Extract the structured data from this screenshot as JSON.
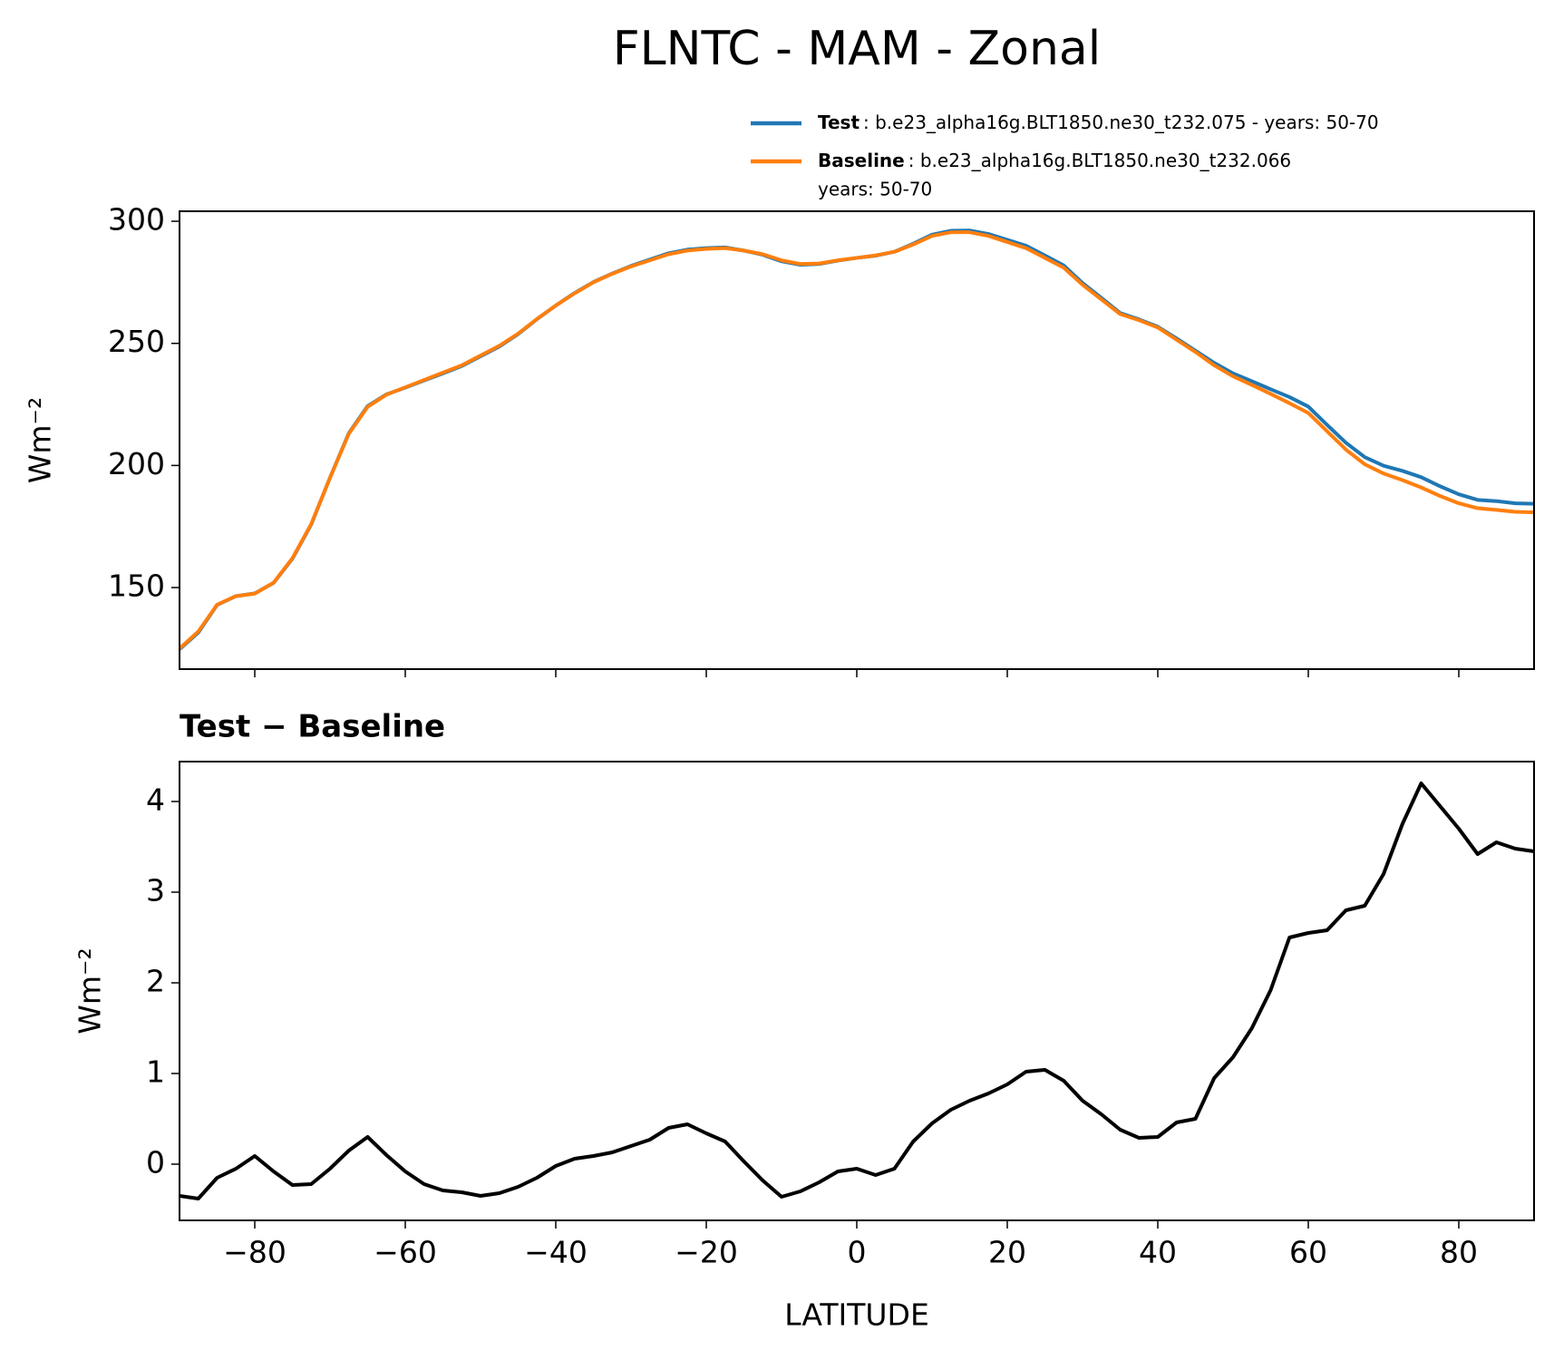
{
  "title": "FLNTC - MAM - Zonal",
  "chart_data": [
    {
      "type": "line",
      "ylabel": "Wm⁻²",
      "xlim": [
        -90,
        90
      ],
      "ylim": [
        116.6,
        304.1
      ],
      "xticks": [
        {
          "value": -80,
          "label": "−80"
        },
        {
          "value": -60,
          "label": "−60"
        },
        {
          "value": -40,
          "label": "−40"
        },
        {
          "value": -20,
          "label": "−20"
        },
        0,
        20,
        40,
        60,
        80
      ],
      "yticks": [
        150,
        200,
        250,
        300
      ],
      "x": [
        -90,
        -87.5,
        -85,
        -82.5,
        -80,
        -77.5,
        -75,
        -72.5,
        -70,
        -67.5,
        -65,
        -62.5,
        -60,
        -57.5,
        -55,
        -52.5,
        -50,
        -47.5,
        -45,
        -42.5,
        -40,
        -37.5,
        -35,
        -32.5,
        -30,
        -27.5,
        -25,
        -22.5,
        -20,
        -17.5,
        -15,
        -12.5,
        -10,
        -7.5,
        -5,
        -2.5,
        0,
        2.5,
        5,
        7.5,
        10,
        12.5,
        15,
        17.5,
        20,
        22.5,
        25,
        27.5,
        30,
        32.5,
        35,
        37.5,
        40,
        42.5,
        45,
        47.5,
        50,
        52.5,
        55,
        57.5,
        60,
        62.5,
        65,
        67.5,
        70,
        72.5,
        75,
        77.5,
        80,
        82.5,
        85,
        87.5,
        90
      ],
      "series": [
        {
          "name": "Test",
          "description": [
            ": b.e23_alpha16g.BLT1850.ne30_t232.075 - years: 50-70"
          ],
          "color": "#1f77b4",
          "values": [
            124.7,
            131.6,
            142.9,
            146.5,
            147.6,
            151.9,
            161.8,
            175.8,
            195.0,
            213.2,
            224.3,
            229.1,
            231.9,
            234.8,
            237.7,
            240.7,
            244.7,
            248.7,
            253.8,
            259.9,
            265.5,
            270.6,
            275.1,
            278.6,
            281.7,
            284.3,
            286.9,
            288.4,
            289.0,
            289.3,
            288.0,
            286.3,
            283.6,
            282.2,
            282.5,
            283.9,
            285.0,
            285.9,
            287.5,
            290.8,
            294.5,
            296.1,
            296.2,
            294.8,
            292.4,
            290.0,
            286.0,
            281.9,
            274.7,
            268.6,
            262.4,
            259.8,
            256.8,
            252.0,
            247.0,
            242.0,
            237.7,
            234.5,
            231.2,
            228.0,
            224.1,
            216.6,
            209.3,
            203.4,
            199.9,
            197.8,
            195.2,
            191.5,
            188.2,
            185.9,
            185.4,
            184.5,
            184.3
          ]
        },
        {
          "name": "Baseline",
          "description": [
            ": b.e23_alpha16g.BLT1850.ne30_t232.066",
            "years: 50-70"
          ],
          "color": "#ff7f0e",
          "values": [
            125,
            132,
            143,
            146.5,
            147.5,
            152,
            162,
            176,
            195,
            213,
            224,
            229,
            232,
            235,
            238,
            241,
            245,
            249,
            254,
            260,
            265.5,
            270.5,
            275,
            278.5,
            281.5,
            284,
            286.5,
            288,
            288.7,
            289,
            288,
            286.5,
            284,
            282.5,
            282.7,
            284,
            285,
            286,
            287.5,
            290.5,
            294,
            295.5,
            295.5,
            294,
            291.5,
            289,
            285,
            281,
            274,
            268,
            262,
            259.5,
            256.5,
            251.5,
            246.5,
            241,
            236.5,
            233,
            229.3,
            225.5,
            221.5,
            214,
            206.5,
            200.5,
            196.7,
            194,
            191,
            187.5,
            184.5,
            182.5,
            181.8,
            181,
            180.8
          ]
        }
      ]
    },
    {
      "type": "line",
      "title": "Test − Baseline",
      "xlabel": "LATITUDE",
      "ylabel": "Wm⁻²",
      "xlim": [
        -90,
        90
      ],
      "ylim": [
        -0.62,
        4.44
      ],
      "xticks": [
        {
          "value": -80,
          "label": "−80"
        },
        {
          "value": -60,
          "label": "−60"
        },
        {
          "value": -40,
          "label": "−40"
        },
        {
          "value": -20,
          "label": "−20"
        },
        0,
        20,
        40,
        60,
        80
      ],
      "yticks": [
        0,
        1,
        2,
        3,
        4
      ],
      "x": [
        -90,
        -87.5,
        -85,
        -82.5,
        -80,
        -77.5,
        -75,
        -72.5,
        -70,
        -67.5,
        -65,
        -62.5,
        -60,
        -57.5,
        -55,
        -52.5,
        -50,
        -47.5,
        -45,
        -42.5,
        -40,
        -37.5,
        -35,
        -32.5,
        -30,
        -27.5,
        -25,
        -22.5,
        -20,
        -17.5,
        -15,
        -12.5,
        -10,
        -7.5,
        -5,
        -2.5,
        0,
        2.5,
        5,
        7.5,
        10,
        12.5,
        15,
        17.5,
        20,
        22.5,
        25,
        27.5,
        30,
        32.5,
        35,
        37.5,
        40,
        42.5,
        45,
        47.5,
        50,
        52.5,
        55,
        57.5,
        60,
        62.5,
        65,
        67.5,
        70,
        72.5,
        75,
        77.5,
        80,
        82.5,
        85,
        87.5,
        90
      ],
      "series": [
        {
          "color": "#000000",
          "values": [
            -0.35,
            -0.38,
            -0.15,
            -0.05,
            0.09,
            -0.08,
            -0.23,
            -0.22,
            -0.05,
            0.15,
            0.3,
            0.1,
            -0.08,
            -0.22,
            -0.29,
            -0.31,
            -0.35,
            -0.32,
            -0.25,
            -0.15,
            -0.02,
            0.06,
            0.09,
            0.13,
            0.2,
            0.27,
            0.4,
            0.44,
            0.34,
            0.25,
            0.03,
            -0.18,
            -0.36,
            -0.3,
            -0.2,
            -0.08,
            -0.05,
            -0.12,
            -0.05,
            0.25,
            0.45,
            0.6,
            0.7,
            0.78,
            0.88,
            1.02,
            1.04,
            0.92,
            0.7,
            0.55,
            0.38,
            0.29,
            0.3,
            0.46,
            0.5,
            0.95,
            1.18,
            1.5,
            1.92,
            2.5,
            2.55,
            2.58,
            2.8,
            2.85,
            3.2,
            3.75,
            4.2,
            3.95,
            3.7,
            3.42,
            3.55,
            3.48,
            3.45
          ]
        }
      ]
    }
  ]
}
